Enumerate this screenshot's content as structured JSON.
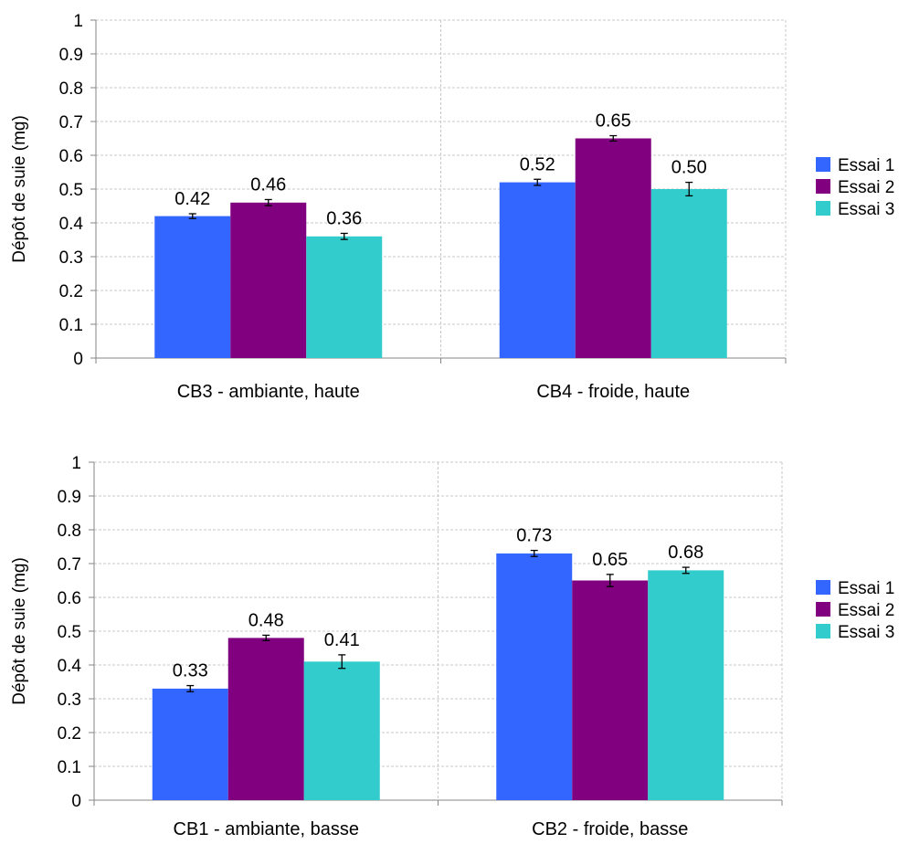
{
  "chart_data": [
    {
      "type": "bar",
      "ylabel": "Dépôt de suie  (mg)",
      "ylim": [
        0,
        1
      ],
      "yticks": [
        "0",
        "0.1",
        "0.2",
        "0.3",
        "0.4",
        "0.5",
        "0.6",
        "0.7",
        "0.8",
        "0.9",
        "1"
      ],
      "grid": true,
      "legend": "right",
      "categories": [
        "CB3 - ambiante, haute",
        "CB4 - froide, haute"
      ],
      "series": [
        {
          "name": "Essai 1",
          "color": "#3366ff",
          "values": [
            0.42,
            0.52
          ],
          "labels": [
            "0.42",
            "0.52"
          ],
          "err": [
            0.007,
            0.009
          ]
        },
        {
          "name": "Essai 2",
          "color": "#800080",
          "values": [
            0.46,
            0.65
          ],
          "labels": [
            "0.46",
            "0.65"
          ],
          "err": [
            0.009,
            0.008
          ]
        },
        {
          "name": "Essai 3",
          "color": "#33cccc",
          "values": [
            0.36,
            0.5
          ],
          "labels": [
            "0.36",
            "0.50"
          ],
          "err": [
            0.009,
            0.02
          ]
        }
      ]
    },
    {
      "type": "bar",
      "ylabel": "Dépôt de suie  (mg)",
      "ylim": [
        0,
        1
      ],
      "yticks": [
        "0",
        "0.1",
        "0.2",
        "0.3",
        "0.4",
        "0.5",
        "0.6",
        "0.7",
        "0.8",
        "0.9",
        "1"
      ],
      "grid": true,
      "legend": "right",
      "categories": [
        "CB1 - ambiante, basse",
        "CB2 - froide, basse"
      ],
      "series": [
        {
          "name": "Essai 1",
          "color": "#3366ff",
          "values": [
            0.33,
            0.73
          ],
          "labels": [
            "0.33",
            "0.73"
          ],
          "err": [
            0.009,
            0.009
          ]
        },
        {
          "name": "Essai 2",
          "color": "#800080",
          "values": [
            0.48,
            0.65
          ],
          "labels": [
            "0.48",
            "0.65"
          ],
          "err": [
            0.008,
            0.018
          ]
        },
        {
          "name": "Essai 3",
          "color": "#33cccc",
          "values": [
            0.41,
            0.68
          ],
          "labels": [
            "0.41",
            "0.68"
          ],
          "err": [
            0.02,
            0.009
          ]
        }
      ]
    }
  ]
}
